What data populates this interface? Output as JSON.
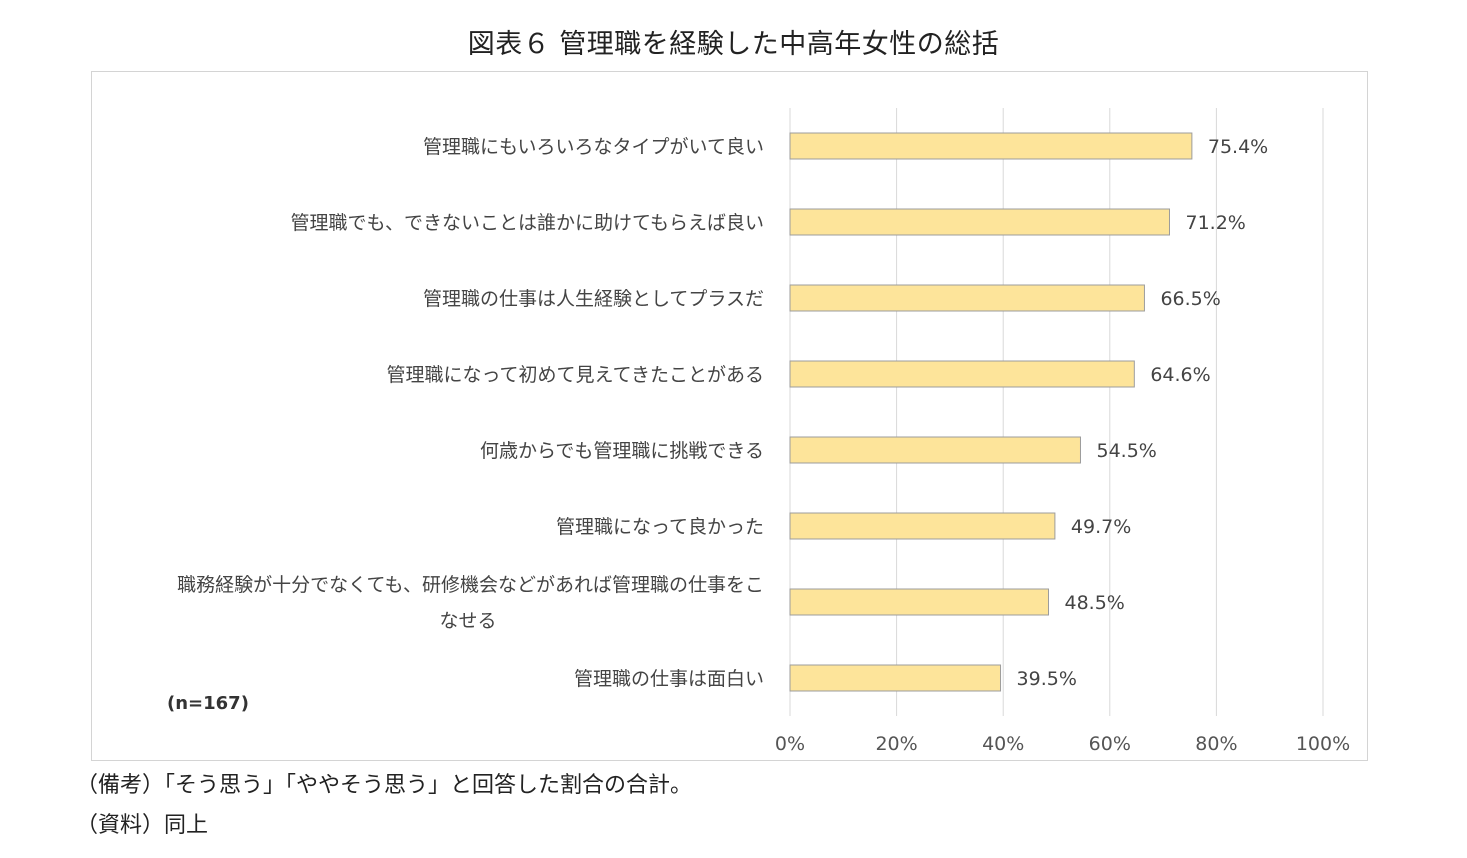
{
  "title": "図表６ 管理職を経験した中高年女性の総括",
  "chart_data": {
    "type": "bar",
    "orientation": "horizontal",
    "categories": [
      "管理職にもいろいろなタイプがいて良い",
      "管理職でも、できないことは誰かに助けてもらえば良い",
      "管理職の仕事は人生経験としてプラスだ",
      "管理職になって初めて見えてきたことがある",
      "何歳からでも管理職に挑戦できる",
      "管理職になって良かった",
      "職務経験が十分でなくても、研修機会などがあれば管理職の仕事をこなせる",
      "管理職の仕事は面白い"
    ],
    "category_lines": [
      [
        "管理職にもいろいろなタイプがいて良い"
      ],
      [
        "管理職でも、できないことは誰かに助けてもらえば良い"
      ],
      [
        "管理職の仕事は人生経験としてプラスだ"
      ],
      [
        "管理職になって初めて見えてきたことがある"
      ],
      [
        "何歳からでも管理職に挑戦できる"
      ],
      [
        "管理職になって良かった"
      ],
      [
        "職務経験が十分でなくても、研修機会などがあれば管理職の仕事をこ",
        "なせる"
      ],
      [
        "管理職の仕事は面白い"
      ]
    ],
    "values": [
      75.4,
      71.2,
      66.5,
      64.6,
      54.5,
      49.7,
      48.5,
      39.5
    ],
    "value_labels": [
      "75.4%",
      "71.2%",
      "66.5%",
      "64.6%",
      "54.5%",
      "49.7%",
      "48.5%",
      "39.5%"
    ],
    "xlim": [
      0,
      100
    ],
    "xticks": [
      0,
      20,
      40,
      60,
      80,
      100
    ],
    "xtick_labels": [
      "0%",
      "20%",
      "40%",
      "60%",
      "80%",
      "100%"
    ],
    "grid": true,
    "bar_color": "#FDE49A",
    "bar_edge_color": "#9C9C9C",
    "sample_note": "(n=167)"
  },
  "notes": {
    "remarks": "（備考）「そう思う」「ややそう思う」と回答した割合の合計。",
    "source": "（資料）同上"
  }
}
